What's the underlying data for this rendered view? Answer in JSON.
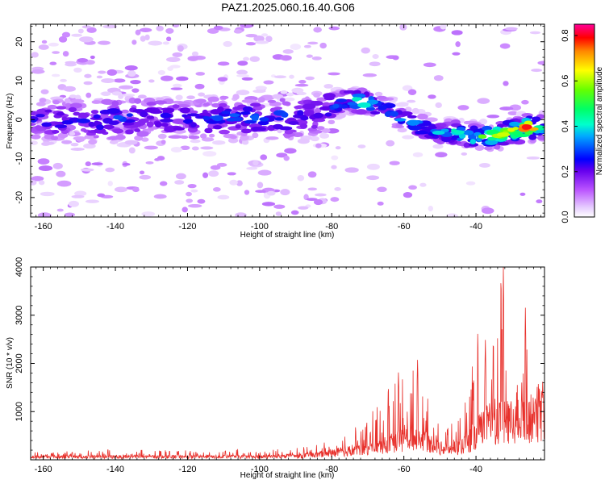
{
  "title": "PAZ1.2025.060.16.40.G06",
  "chart_data": [
    {
      "type": "heatmap",
      "title": "PAZ1.2025.060.16.40.G06",
      "xlabel": "Height of straight line (km)",
      "ylabel": "Frequency (Hz)",
      "xlim": [
        -163.5,
        -21
      ],
      "ylim": [
        -25,
        24.5
      ],
      "xticks": [
        "-160",
        "-140",
        "-120",
        "-100",
        "-80",
        "-60",
        "-40"
      ],
      "xtick_values": [
        -160,
        -140,
        -120,
        -100,
        -80,
        -60,
        -40
      ],
      "yticks": [
        "20",
        "10",
        "0",
        "-10",
        "-20"
      ],
      "ytick_values": [
        20,
        10,
        0,
        -10,
        -20
      ],
      "colorbar": {
        "label": "Normalized spectral amplitude",
        "range": [
          0,
          0.85
        ],
        "ticks": [
          "0.0",
          "0.2",
          "0.4",
          "0.6",
          "0.8"
        ],
        "tick_values": [
          0,
          0.2,
          0.4,
          0.6,
          0.8
        ],
        "colors": [
          "#ffffff",
          "#cc66ff",
          "#5500ee",
          "#0000ff",
          "#00ccff",
          "#00ff88",
          "#66ff00",
          "#ffff00",
          "#ff9900",
          "#ff0000",
          "#ff0099"
        ]
      },
      "ridge": {
        "description_free": true,
        "height_km": [
          -163,
          -150,
          -140,
          -130,
          -120,
          -110,
          -100,
          -90,
          -84,
          -80,
          -76,
          -70,
          -65,
          -60,
          -55,
          -50,
          -45,
          -40,
          -35,
          -30,
          -25,
          -21
        ],
        "center_frequency_hz": [
          0,
          -0.5,
          0,
          0.5,
          0,
          0.5,
          0.5,
          0.5,
          1.5,
          3.5,
          5,
          4.5,
          3,
          0,
          -2,
          -3,
          -3.5,
          -4.5,
          -4,
          -3,
          -2,
          -2
        ],
        "peak_amplitude": [
          0.25,
          0.25,
          0.3,
          0.25,
          0.25,
          0.3,
          0.3,
          0.3,
          0.25,
          0.3,
          0.4,
          0.45,
          0.35,
          0.35,
          0.35,
          0.4,
          0.45,
          0.5,
          0.55,
          0.6,
          0.75,
          0.35
        ]
      }
    },
    {
      "type": "line",
      "xlabel": "Height of straight line (km)",
      "ylabel": "SNR (10 * v/v)",
      "xlim": [
        -163.5,
        -21
      ],
      "ylim": [
        0,
        4000
      ],
      "xticks": [
        "-160",
        "-140",
        "-120",
        "-100",
        "-80",
        "-60",
        "-40"
      ],
      "xtick_values": [
        -160,
        -140,
        -120,
        -100,
        -80,
        -60,
        -40
      ],
      "yticks": [
        "1000",
        "2000",
        "3000",
        "4000"
      ],
      "ytick_values": [
        1000,
        2000,
        3000,
        4000
      ],
      "color": "#e8312c",
      "envelope": {
        "x": [
          -163,
          -150,
          -140,
          -120,
          -100,
          -90,
          -85,
          -80,
          -75,
          -70,
          -65,
          -62,
          -60,
          -58,
          -56,
          -54,
          -52,
          -50,
          -48,
          -45,
          -42,
          -40,
          -38,
          -36,
          -34,
          -33,
          -32,
          -31,
          -30,
          -28,
          -27,
          -26,
          -25,
          -24,
          -23,
          -22,
          -21
        ],
        "baseline": [
          80,
          80,
          80,
          80,
          80,
          100,
          130,
          180,
          250,
          320,
          400,
          500,
          560,
          600,
          620,
          560,
          420,
          320,
          300,
          360,
          460,
          700,
          900,
          1000,
          1050,
          1150,
          1100,
          1000,
          980,
          1000,
          1050,
          1100,
          1150,
          1100,
          1150,
          1200,
          1200
        ],
        "peaks": [
          200,
          200,
          230,
          200,
          230,
          250,
          350,
          450,
          600,
          900,
          1400,
          1800,
          1700,
          2100,
          1900,
          1400,
          1000,
          700,
          750,
          1000,
          1300,
          2750,
          2300,
          2500,
          2700,
          4050,
          3600,
          2200,
          1500,
          1600,
          2200,
          3200,
          2600,
          1200,
          1700,
          1500,
          1650
        ]
      },
      "peak_events": [
        {
          "x": -64.3,
          "y": 1600
        },
        {
          "x": -61.5,
          "y": 1850
        },
        {
          "x": -56.2,
          "y": 2150
        },
        {
          "x": -39.5,
          "y": 2750
        },
        {
          "x": -37.4,
          "y": 2550
        },
        {
          "x": -35.2,
          "y": 2620
        },
        {
          "x": -32.4,
          "y": 4050
        },
        {
          "x": -26.3,
          "y": 3200
        },
        {
          "x": -21.5,
          "y": 1650
        }
      ]
    }
  ]
}
